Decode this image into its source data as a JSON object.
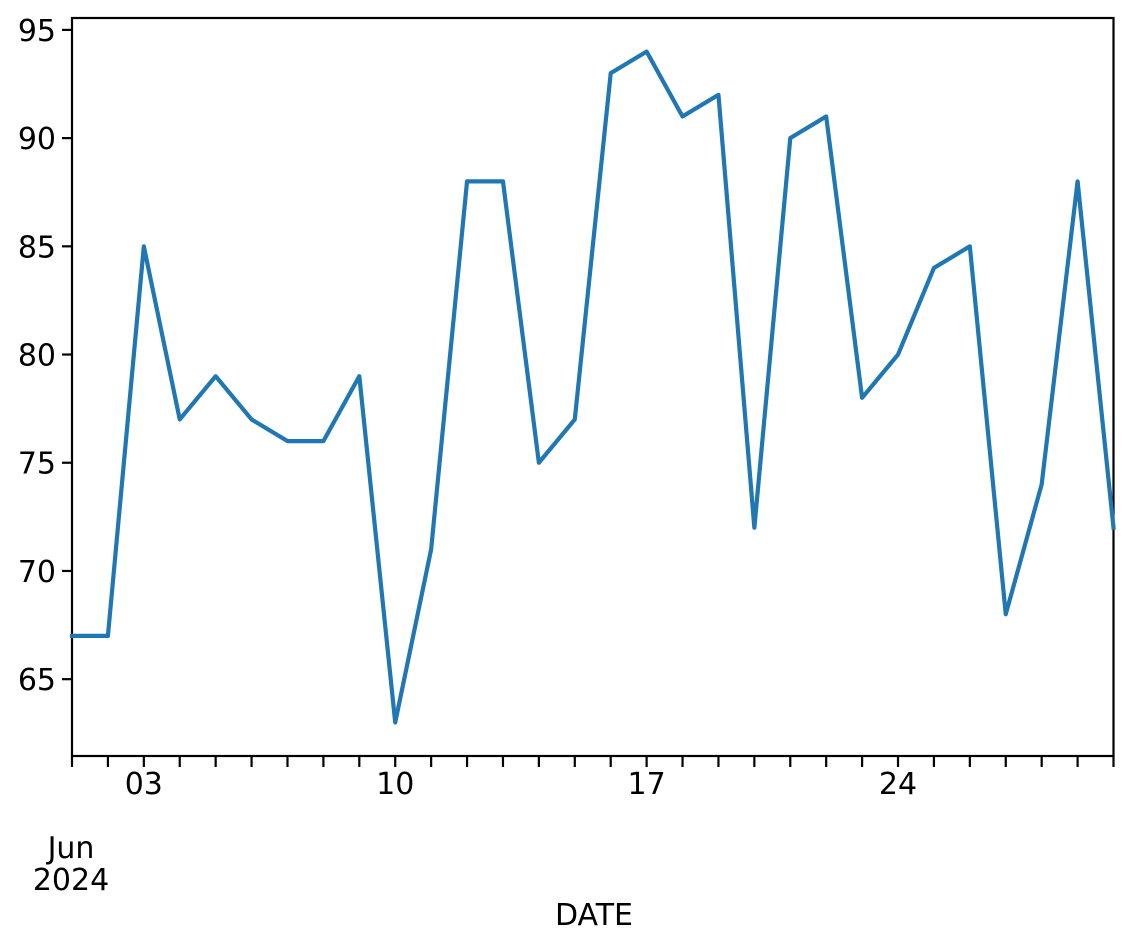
{
  "chart_data": {
    "type": "line",
    "title": "",
    "xlabel": "DATE",
    "ylabel": "",
    "x": [
      "2024-06-01",
      "2024-06-02",
      "2024-06-03",
      "2024-06-04",
      "2024-06-05",
      "2024-06-06",
      "2024-06-07",
      "2024-06-08",
      "2024-06-09",
      "2024-06-10",
      "2024-06-11",
      "2024-06-12",
      "2024-06-13",
      "2024-06-14",
      "2024-06-15",
      "2024-06-16",
      "2024-06-17",
      "2024-06-18",
      "2024-06-19",
      "2024-06-20",
      "2024-06-21",
      "2024-06-22",
      "2024-06-23",
      "2024-06-24",
      "2024-06-25",
      "2024-06-26",
      "2024-06-27",
      "2024-06-28",
      "2024-06-29",
      "2024-06-30"
    ],
    "values": [
      67,
      67,
      85,
      77,
      79,
      77,
      76,
      76,
      79,
      63,
      71,
      88,
      88,
      75,
      77,
      93,
      94,
      91,
      92,
      72,
      90,
      91,
      78,
      80,
      84,
      85,
      68,
      74,
      88,
      72
    ],
    "line_color": "#1f77b4",
    "axis_color": "#000000",
    "ylim": [
      61.45,
      95.55
    ],
    "y_ticks": [
      65,
      70,
      75,
      80,
      85,
      90,
      95
    ],
    "x_major_ticks": [
      {
        "date": "2024-06-03",
        "label": "03"
      },
      {
        "date": "2024-06-10",
        "label": "10"
      },
      {
        "date": "2024-06-17",
        "label": "17"
      },
      {
        "date": "2024-06-24",
        "label": "24"
      }
    ],
    "x_offset": {
      "month": "Jun",
      "year": "2024"
    },
    "grid": false,
    "legend_position": "none"
  }
}
